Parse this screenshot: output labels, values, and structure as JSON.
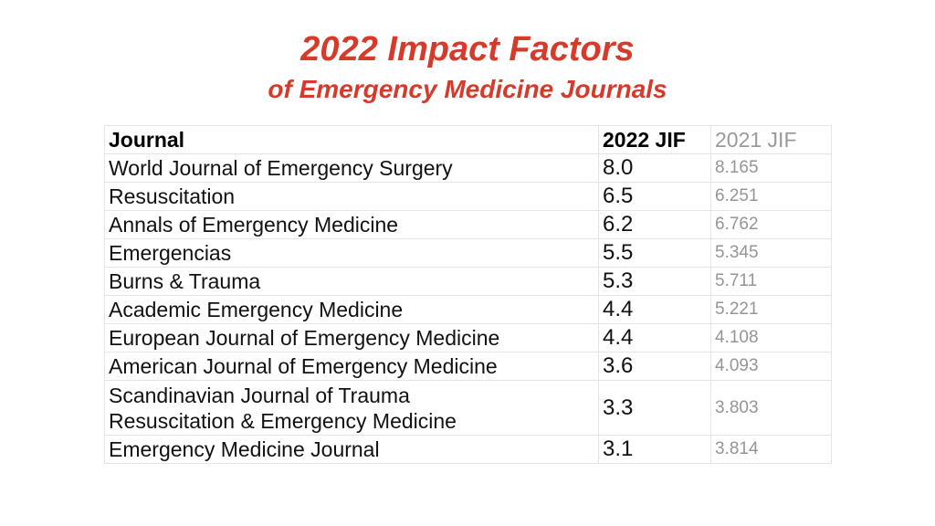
{
  "title": {
    "line1": "2022 Impact Factors",
    "line2": "of Emergency Medicine Journals",
    "color": "#d63a2a"
  },
  "table": {
    "headers": {
      "journal": "Journal",
      "jif_2022": "2022 JIF",
      "jif_2021": "2021 JIF"
    },
    "rows": [
      {
        "journal": "World Journal of Emergency Surgery",
        "jif_2022": "8.0",
        "jif_2021": "8.165"
      },
      {
        "journal": "Resuscitation",
        "jif_2022": "6.5",
        "jif_2021": "6.251"
      },
      {
        "journal": "Annals of Emergency Medicine",
        "jif_2022": "6.2",
        "jif_2021": "6.762"
      },
      {
        "journal": "Emergencias",
        "jif_2022": "5.5",
        "jif_2021": "5.345"
      },
      {
        "journal": "Burns & Trauma",
        "jif_2022": "5.3",
        "jif_2021": "5.711"
      },
      {
        "journal": "Academic Emergency Medicine",
        "jif_2022": "4.4",
        "jif_2021": "5.221"
      },
      {
        "journal": "European Journal of Emergency Medicine",
        "jif_2022": "4.4",
        "jif_2021": "4.108"
      },
      {
        "journal": "American Journal of Emergency Medicine",
        "jif_2022": "3.6",
        "jif_2021": "4.093"
      },
      {
        "journal_line1": "Scandinavian Journal of Trauma",
        "journal_line2": "Resuscitation & Emergency Medicine",
        "jif_2022": "3.3",
        "jif_2021": "3.803"
      },
      {
        "journal": "Emergency Medicine Journal",
        "jif_2022": "3.1",
        "jif_2021": "3.814"
      }
    ]
  }
}
